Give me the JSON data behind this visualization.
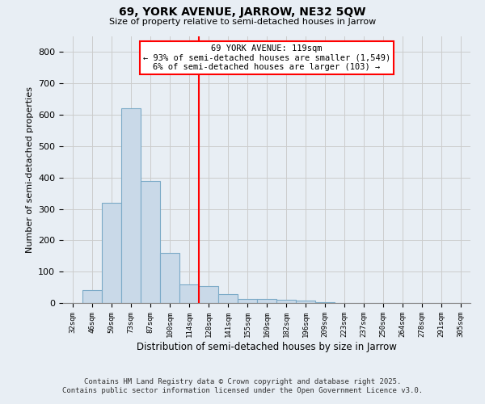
{
  "title": "69, YORK AVENUE, JARROW, NE32 5QW",
  "subtitle": "Size of property relative to semi-detached houses in Jarrow",
  "xlabel": "Distribution of semi-detached houses by size in Jarrow",
  "ylabel": "Number of semi-detached properties",
  "footer_line1": "Contains HM Land Registry data © Crown copyright and database right 2025.",
  "footer_line2": "Contains public sector information licensed under the Open Government Licence v3.0.",
  "bin_labels": [
    "32sqm",
    "46sqm",
    "59sqm",
    "73sqm",
    "87sqm",
    "100sqm",
    "114sqm",
    "128sqm",
    "141sqm",
    "155sqm",
    "169sqm",
    "182sqm",
    "196sqm",
    "209sqm",
    "223sqm",
    "237sqm",
    "250sqm",
    "264sqm",
    "278sqm",
    "291sqm",
    "305sqm"
  ],
  "bin_values": [
    0,
    40,
    320,
    620,
    390,
    160,
    60,
    55,
    28,
    12,
    12,
    10,
    8,
    2,
    0,
    0,
    0,
    0,
    0,
    0,
    0
  ],
  "bar_color": "#c9d9e8",
  "bar_edge_color": "#7baac7",
  "property_line_x": 6.5,
  "annotation_label": "69 YORK AVENUE: 119sqm",
  "annotation_line1": "← 93% of semi-detached houses are smaller (1,549)",
  "annotation_line2": "6% of semi-detached houses are larger (103) →",
  "annotation_box_color": "white",
  "annotation_box_edge": "red",
  "vline_color": "red",
  "ylim": [
    0,
    850
  ],
  "yticks": [
    0,
    100,
    200,
    300,
    400,
    500,
    600,
    700,
    800
  ],
  "grid_color": "#cccccc",
  "bg_color": "#e8eef4"
}
